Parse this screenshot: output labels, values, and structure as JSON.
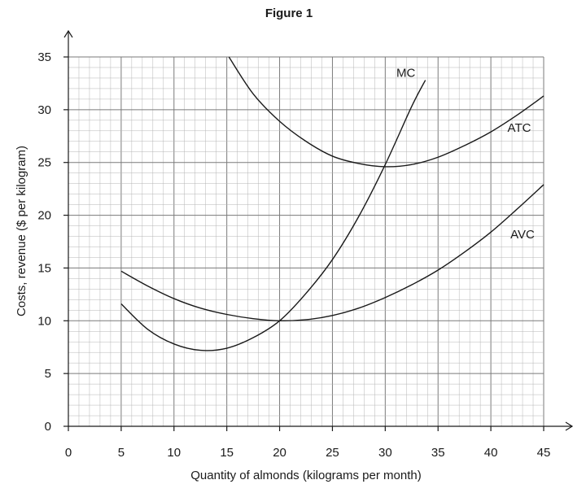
{
  "chart_data": {
    "type": "line",
    "title": "Figure 1",
    "xlabel": "Quantity of almonds (kilograms per month)",
    "ylabel": "Costs, revenue ($ per kilogram)",
    "xlim": [
      0,
      45
    ],
    "ylim": [
      0,
      35
    ],
    "x_ticks": [
      "0",
      "5",
      "10",
      "15",
      "20",
      "25",
      "30",
      "35",
      "40",
      "45"
    ],
    "y_ticks": [
      "0",
      "5",
      "10",
      "15",
      "20",
      "25",
      "30",
      "35"
    ],
    "grid": true,
    "series": [
      {
        "name": "MC",
        "x": [
          5,
          7.5,
          10,
          12.5,
          15,
          17.5,
          20,
          22.5,
          25,
          27.5,
          30,
          32.5,
          33.8
        ],
        "y": [
          11.6,
          9.2,
          7.8,
          7.2,
          7.4,
          8.4,
          10.0,
          12.6,
          15.8,
          19.9,
          24.8,
          30.3,
          32.8
        ]
      },
      {
        "name": "ATC",
        "x": [
          15.2,
          17.5,
          20,
          22.5,
          25,
          27.5,
          30,
          32.5,
          35,
          37.5,
          40,
          42.5,
          45
        ],
        "y": [
          35.0,
          31.5,
          28.9,
          27.0,
          25.6,
          24.9,
          24.6,
          24.8,
          25.5,
          26.6,
          27.9,
          29.5,
          31.3
        ]
      },
      {
        "name": "AVC",
        "x": [
          5,
          7.5,
          10,
          12.5,
          15,
          17.5,
          20,
          22.5,
          25,
          27.5,
          30,
          32.5,
          35,
          37.5,
          40,
          42.5,
          45
        ],
        "y": [
          14.7,
          13.3,
          12.1,
          11.2,
          10.6,
          10.2,
          10.0,
          10.1,
          10.5,
          11.2,
          12.2,
          13.4,
          14.8,
          16.5,
          18.4,
          20.6,
          22.9
        ]
      }
    ]
  }
}
